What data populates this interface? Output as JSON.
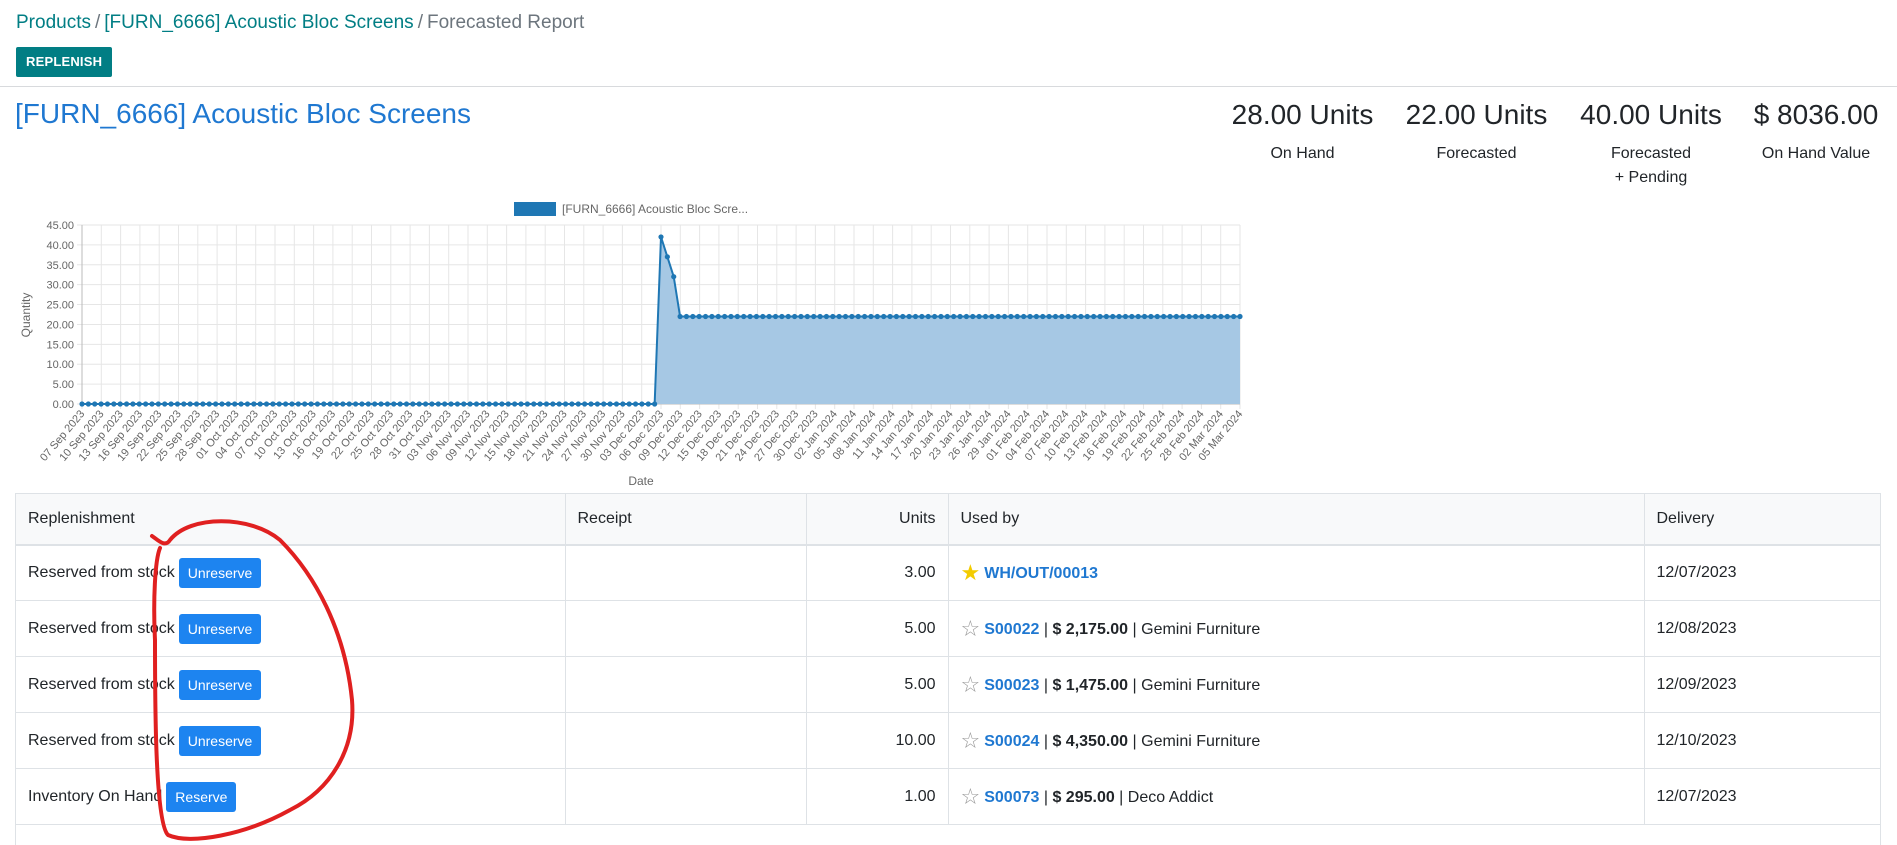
{
  "breadcrumb": {
    "items": [
      "Products",
      "[FURN_6666] Acoustic Bloc Screens",
      "Forecasted Report"
    ],
    "sep": "/"
  },
  "replenish_label": "REPLENISH",
  "product_title": "[FURN_6666] Acoustic Bloc Screens",
  "kpis": [
    {
      "value": "28.00 Units",
      "label": "On Hand",
      "label2": ""
    },
    {
      "value": "22.00 Units",
      "label": "Forecasted",
      "label2": ""
    },
    {
      "value": "40.00 Units",
      "label": "Forecasted",
      "label2": "+ Pending"
    },
    {
      "value": "$ 8036.00",
      "label": "On Hand Value",
      "label2": ""
    }
  ],
  "chart_data": {
    "type": "area",
    "legend": "[FURN_6666] Acoustic Bloc Scre...",
    "legend_position": "top-center",
    "xlabel": "Date",
    "ylabel": "Quantity",
    "ylim": [
      0,
      45
    ],
    "yticks": [
      "0.00",
      "5.00",
      "10.00",
      "15.00",
      "20.00",
      "25.00",
      "30.00",
      "35.00",
      "40.00",
      "45.00"
    ],
    "xticks": [
      "07 Sep 2023",
      "10 Sep 2023",
      "13 Sep 2023",
      "16 Sep 2023",
      "19 Sep 2023",
      "22 Sep 2023",
      "25 Sep 2023",
      "28 Sep 2023",
      "01 Oct 2023",
      "04 Oct 2023",
      "07 Oct 2023",
      "10 Oct 2023",
      "13 Oct 2023",
      "16 Oct 2023",
      "19 Oct 2023",
      "22 Oct 2023",
      "25 Oct 2023",
      "28 Oct 2023",
      "31 Oct 2023",
      "03 Nov 2023",
      "06 Nov 2023",
      "09 Nov 2023",
      "12 Nov 2023",
      "15 Nov 2023",
      "18 Nov 2023",
      "21 Nov 2023",
      "24 Nov 2023",
      "27 Nov 2023",
      "30 Nov 2023",
      "03 Dec 2023",
      "06 Dec 2023",
      "09 Dec 2023",
      "12 Dec 2023",
      "15 Dec 2023",
      "18 Dec 2023",
      "21 Dec 2023",
      "24 Dec 2023",
      "27 Dec 2023",
      "30 Dec 2023",
      "02 Jan 2024",
      "05 Jan 2024",
      "08 Jan 2024",
      "11 Jan 2024",
      "14 Jan 2024",
      "17 Jan 2024",
      "20 Jan 2024",
      "23 Jan 2024",
      "26 Jan 2024",
      "29 Jan 2024",
      "01 Feb 2024",
      "04 Feb 2024",
      "07 Feb 2024",
      "10 Feb 2024",
      "13 Feb 2024",
      "16 Feb 2024",
      "19 Feb 2024",
      "22 Feb 2024",
      "25 Feb 2024",
      "28 Feb 2024",
      "02 Mar 2024",
      "05 Mar 2024"
    ],
    "series": [
      {
        "name": "[FURN_6666] Acoustic Bloc Scre...",
        "color": "#1f77b4",
        "fill": "#a6c8e4",
        "points": [
          {
            "x": "2023-09-07",
            "y": 0
          },
          {
            "x": "2023-12-06",
            "y": 0
          },
          {
            "x": "2023-12-07",
            "y": 42
          },
          {
            "x": "2023-12-08",
            "y": 37
          },
          {
            "x": "2023-12-09",
            "y": 32
          },
          {
            "x": "2023-12-10",
            "y": 22
          },
          {
            "x": "2024-03-07",
            "y": 22
          }
        ]
      }
    ],
    "grid": true
  },
  "table": {
    "headers": [
      "Replenishment",
      "Receipt",
      "Units",
      "Used by",
      "Delivery"
    ],
    "rows": [
      {
        "replenishment": "Reserved from stock",
        "action": "Unreserve",
        "receipt": "",
        "units": "3.00",
        "starred": true,
        "ref": "WH/OUT/00013",
        "amount": "",
        "partner": "",
        "delivery": "12/07/2023"
      },
      {
        "replenishment": "Reserved from stock",
        "action": "Unreserve",
        "receipt": "",
        "units": "5.00",
        "starred": false,
        "ref": "S00022",
        "amount": "$ 2,175.00",
        "partner": "Gemini Furniture",
        "delivery": "12/08/2023"
      },
      {
        "replenishment": "Reserved from stock",
        "action": "Unreserve",
        "receipt": "",
        "units": "5.00",
        "starred": false,
        "ref": "S00023",
        "amount": "$ 1,475.00",
        "partner": "Gemini Furniture",
        "delivery": "12/09/2023"
      },
      {
        "replenishment": "Reserved from stock",
        "action": "Unreserve",
        "receipt": "",
        "units": "10.00",
        "starred": false,
        "ref": "S00024",
        "amount": "$ 4,350.00",
        "partner": "Gemini Furniture",
        "delivery": "12/10/2023"
      },
      {
        "replenishment": "Inventory On Hand",
        "action": "Reserve",
        "receipt": "",
        "units": "1.00",
        "starred": false,
        "ref": "S00073",
        "amount": "$ 295.00",
        "partner": "Deco Addict",
        "delivery": "12/07/2023"
      }
    ]
  },
  "icons": {
    "star_on": "star-filled-icon",
    "star_off": "star-outline-icon"
  },
  "colors": {
    "accent": "#017e84",
    "link": "#1f78d1",
    "button": "#1d84f0",
    "annotation": "#e02020"
  }
}
